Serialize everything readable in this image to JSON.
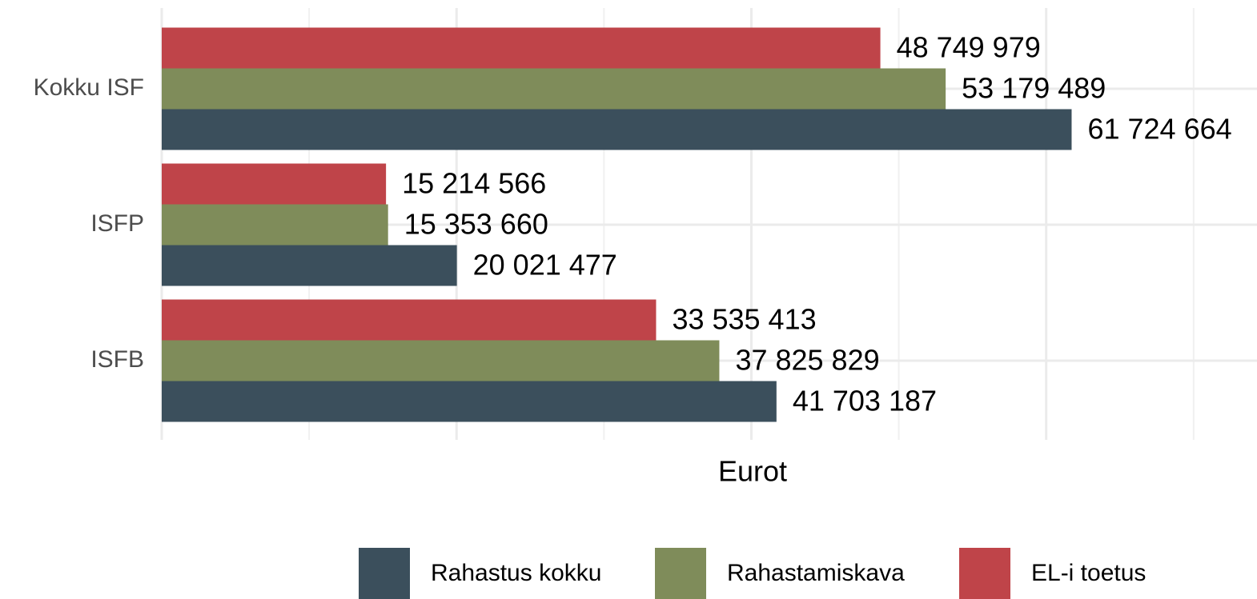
{
  "chart_data": {
    "type": "barh",
    "xlabel": "Eurot",
    "categories": [
      "Kokku ISF",
      "ISFP",
      "ISFB"
    ],
    "series": [
      {
        "name": "Rahastus kokku",
        "color": "#3b4f5c",
        "values": [
          61724664,
          20021477,
          41703187
        ],
        "value_labels": [
          "61 724 664",
          "20 021 477",
          "41 703 187"
        ]
      },
      {
        "name": "Rahastamiskava",
        "color": "#7f8c5a",
        "values": [
          53179489,
          15353660,
          37825829
        ],
        "value_labels": [
          "53 179 489",
          "15 353 660",
          "37 825 829"
        ]
      },
      {
        "name": "EL-i toetus",
        "color": "#bf4449",
        "values": [
          48749979,
          15214566,
          33535413
        ],
        "value_labels": [
          "48 749 979",
          "15 214 566",
          "33 535 413"
        ]
      }
    ],
    "xlim": [
      0,
      74300000
    ],
    "xticks": [
      0,
      20000000,
      40000000,
      60000000
    ],
    "minor_xticks": [
      10000000,
      30000000,
      50000000,
      70000000
    ],
    "grid": true,
    "legend": "bottom"
  }
}
